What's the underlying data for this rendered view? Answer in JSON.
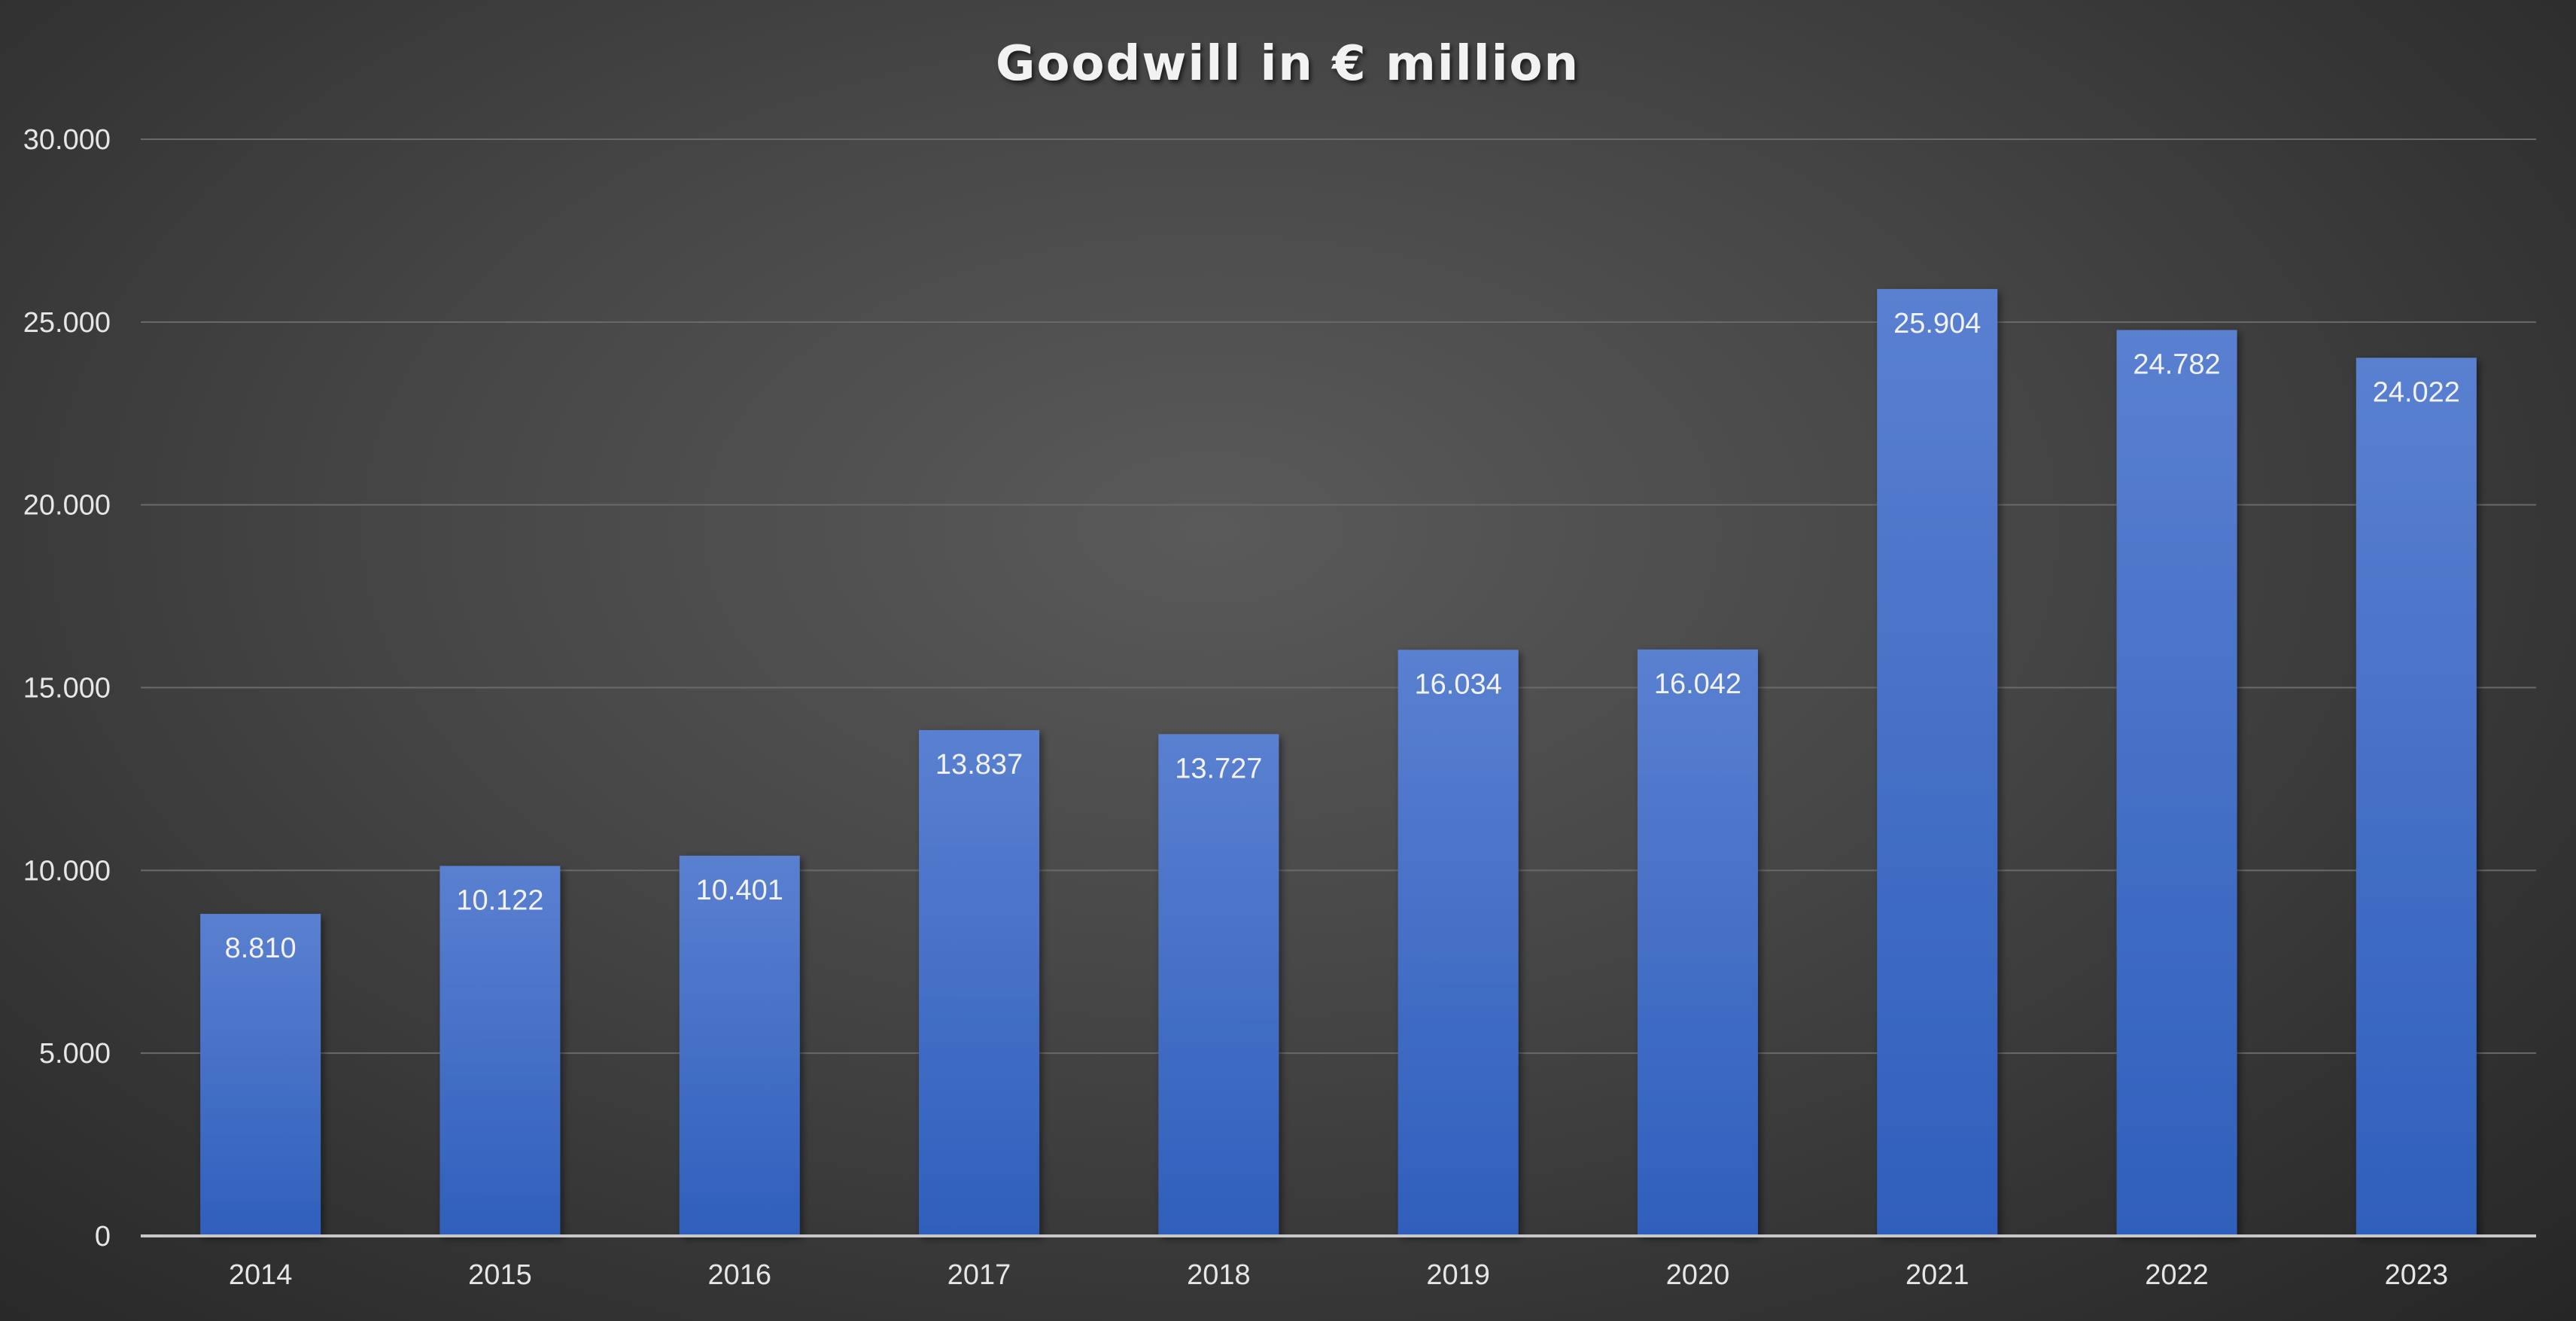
{
  "chart_data": {
    "type": "bar",
    "title": "Goodwill in € million",
    "xlabel": "",
    "ylabel": "",
    "categories": [
      "2014",
      "2015",
      "2016",
      "2017",
      "2018",
      "2019",
      "2020",
      "2021",
      "2022",
      "2023"
    ],
    "values": [
      8810,
      10122,
      10401,
      13837,
      13727,
      16034,
      16042,
      25904,
      24782,
      24022
    ],
    "data_labels": [
      "8.810",
      "10.122",
      "10.401",
      "13.837",
      "13.727",
      "16.034",
      "16.042",
      "25.904",
      "24.782",
      "24.022"
    ],
    "ylim": [
      0,
      30000
    ],
    "y_ticks": [
      0,
      5000,
      10000,
      15000,
      20000,
      25000,
      30000
    ],
    "y_tick_labels": [
      "0",
      "5.000",
      "10.000",
      "15.000",
      "20.000",
      "25.000",
      "30.000"
    ],
    "grid": true,
    "legend": "none",
    "colors": {
      "bar_top": "#5a80d0",
      "bar_bottom": "#2f5fbc",
      "gridline": "#6a6a6a",
      "axis": "#c8c8c8"
    }
  }
}
